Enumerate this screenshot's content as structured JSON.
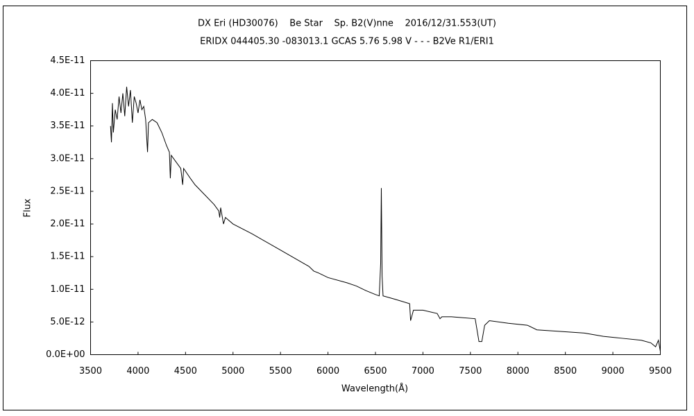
{
  "chart_data": {
    "type": "line",
    "title": "DX Eri (HD30076)    Be Star    Sp. B2(V)nne    2016/12/31.553(UT)",
    "subtitle": "ERIDX 044405.30 -083013.1 GCAS 5.76 5.98 V - - - B2Ve R1/ERI1",
    "x_label": "Wavelength(Å)",
    "y_label": "Flux",
    "xlim": [
      3500,
      9500
    ],
    "xticks": [
      3500,
      4000,
      4500,
      5000,
      5500,
      6000,
      6500,
      7000,
      7500,
      8000,
      8500,
      9000,
      9500
    ],
    "ylim": [
      0,
      4.5e-11
    ],
    "yticks": [
      {
        "value": 0,
        "label": "0.0E+00"
      },
      {
        "value": 5e-12,
        "label": "5.0E-12"
      },
      {
        "value": 1e-11,
        "label": "1.0E-11"
      },
      {
        "value": 1.5e-11,
        "label": "1.5E-11"
      },
      {
        "value": 2e-11,
        "label": "2.0E-11"
      },
      {
        "value": 2.5e-11,
        "label": "2.5E-11"
      },
      {
        "value": 3e-11,
        "label": "3.0E-11"
      },
      {
        "value": 3.5e-11,
        "label": "3.5E-11"
      },
      {
        "value": 4e-11,
        "label": "4.0E-11"
      },
      {
        "value": 4.5e-11,
        "label": "4.5E-11"
      }
    ],
    "color": "#000000",
    "x": [
      3710,
      3720,
      3730,
      3740,
      3760,
      3780,
      3800,
      3820,
      3840,
      3860,
      3880,
      3900,
      3920,
      3940,
      3960,
      3980,
      4000,
      4020,
      4040,
      4060,
      4080,
      4100,
      4110,
      4150,
      4200,
      4250,
      4300,
      4330,
      4340,
      4350,
      4400,
      4450,
      4470,
      4480,
      4550,
      4600,
      4700,
      4800,
      4850,
      4860,
      4870,
      4900,
      4920,
      5000,
      5200,
      5500,
      5800,
      5850,
      5900,
      6000,
      6200,
      6300,
      6400,
      6500,
      6540,
      6555,
      6562,
      6570,
      6580,
      6700,
      6860,
      6870,
      6900,
      7000,
      7150,
      7180,
      7200,
      7300,
      7550,
      7590,
      7620,
      7650,
      7700,
      7900,
      8100,
      8200,
      8500,
      8700,
      8900,
      9100,
      9300,
      9400,
      9450,
      9480,
      9500
    ],
    "values": [
      3.5e-11,
      3.25e-11,
      3.85e-11,
      3.4e-11,
      3.75e-11,
      3.6e-11,
      3.95e-11,
      3.7e-11,
      4e-11,
      3.65e-11,
      4.1e-11,
      3.8e-11,
      4.05e-11,
      3.55e-11,
      3.95e-11,
      3.85e-11,
      3.7e-11,
      3.9e-11,
      3.75e-11,
      3.8e-11,
      3.6e-11,
      3.1e-11,
      3.55e-11,
      3.6e-11,
      3.55e-11,
      3.4e-11,
      3.2e-11,
      3.1e-11,
      2.7e-11,
      3.05e-11,
      2.95e-11,
      2.85e-11,
      2.6e-11,
      2.85e-11,
      2.7e-11,
      2.6e-11,
      2.45e-11,
      2.3e-11,
      2.2e-11,
      2.1e-11,
      2.25e-11,
      2e-11,
      2.1e-11,
      2e-11,
      1.85e-11,
      1.6e-11,
      1.35e-11,
      1.28e-11,
      1.25e-11,
      1.18e-11,
      1.1e-11,
      1.05e-11,
      9.8e-12,
      9.2e-12,
      9e-12,
      1.4e-11,
      2.55e-11,
      1.2e-11,
      9e-12,
      8.5e-12,
      7.8e-12,
      5.2e-12,
      6.8e-12,
      6.8e-12,
      6.3e-12,
      5.5e-12,
      5.8e-12,
      5.8e-12,
      5.5e-12,
      2e-12,
      2e-12,
      4.5e-12,
      5.2e-12,
      4.8e-12,
      4.5e-12,
      3.8e-12,
      3.5e-12,
      3.3e-12,
      2.8e-12,
      2.5e-12,
      2.2e-12,
      1.8e-12,
      1.2e-12,
      2.2e-12,
      5e-13
    ]
  }
}
